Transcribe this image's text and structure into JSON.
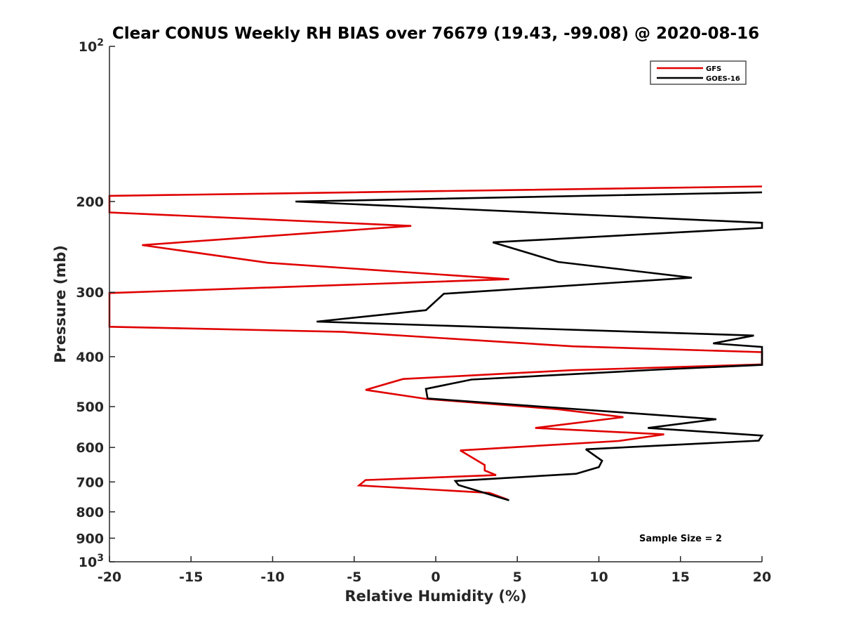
{
  "chart_data": {
    "type": "line",
    "title": "Clear CONUS Weekly RH BIAS over 76679 (19.43, -99.08) @ 2020-08-16",
    "xlabel": "Relative Humidity (%)",
    "ylabel": "Pressure (mb)",
    "xlim": [
      -20,
      20
    ],
    "ylim": [
      100,
      1000
    ],
    "yscale": "log",
    "y_reversed": true,
    "grid": false,
    "legend_position": "top-right",
    "x_ticks": [
      "-20",
      "-15",
      "-10",
      "-5",
      "0",
      "5",
      "10",
      "15",
      "20"
    ],
    "y_ticks": [
      "200",
      "300",
      "400",
      "500",
      "600",
      "700",
      "800",
      "900"
    ],
    "y_tick_values": [
      200,
      300,
      400,
      500,
      600,
      700,
      800,
      900
    ],
    "y_tick_decade_base": "10",
    "y_tick_decades": [
      {
        "value": 100,
        "exponent": "2"
      },
      {
        "value": 1000,
        "exponent": "3"
      }
    ],
    "series": [
      {
        "name": "GFS",
        "color": "#e00000",
        "points": [
          [
            20,
            187
          ],
          [
            -20,
            195
          ],
          [
            -20,
            210
          ],
          [
            -1.5,
            223
          ],
          [
            -18,
            243
          ],
          [
            -10.3,
            263
          ],
          [
            4.5,
            283
          ],
          [
            -20,
            301
          ],
          [
            -20,
            350
          ],
          [
            -5.7,
            358
          ],
          [
            8.4,
            382
          ],
          [
            20,
            392
          ],
          [
            20,
            414
          ],
          [
            8.3,
            425
          ],
          [
            -2,
            442
          ],
          [
            -4.3,
            464
          ],
          [
            -0.6,
            483
          ],
          [
            7.5,
            506
          ],
          [
            11.5,
            524
          ],
          [
            6.1,
            550
          ],
          [
            14,
            566
          ],
          [
            11.2,
            583
          ],
          [
            1.5,
            608
          ],
          [
            3,
            649
          ],
          [
            3,
            665
          ],
          [
            3.7,
            679
          ],
          [
            -4.3,
            694
          ],
          [
            -4.7,
            711
          ],
          [
            3.3,
            735
          ],
          [
            4.4,
            757
          ]
        ]
      },
      {
        "name": "GOES-16",
        "color": "#000000",
        "points": [
          [
            20,
            192
          ],
          [
            -8.6,
            200
          ],
          [
            20,
            220
          ],
          [
            20,
            225
          ],
          [
            3.5,
            240
          ],
          [
            7.5,
            262
          ],
          [
            15.7,
            281
          ],
          [
            0.5,
            302
          ],
          [
            -0.6,
            325
          ],
          [
            -7.3,
            342
          ],
          [
            19.5,
            364
          ],
          [
            17,
            377
          ],
          [
            20,
            383
          ],
          [
            20,
            415
          ],
          [
            13.5,
            424
          ],
          [
            2.2,
            443
          ],
          [
            -0.6,
            462
          ],
          [
            -0.5,
            482
          ],
          [
            17.2,
            529
          ],
          [
            13,
            550
          ],
          [
            20,
            569
          ],
          [
            19.8,
            582
          ],
          [
            9.2,
            605
          ],
          [
            10.2,
            637
          ],
          [
            10,
            655
          ],
          [
            8.6,
            675
          ],
          [
            1.2,
            697
          ],
          [
            1.4,
            710
          ],
          [
            4.5,
            760
          ]
        ]
      }
    ],
    "annotation": "Sample Size = 2"
  }
}
